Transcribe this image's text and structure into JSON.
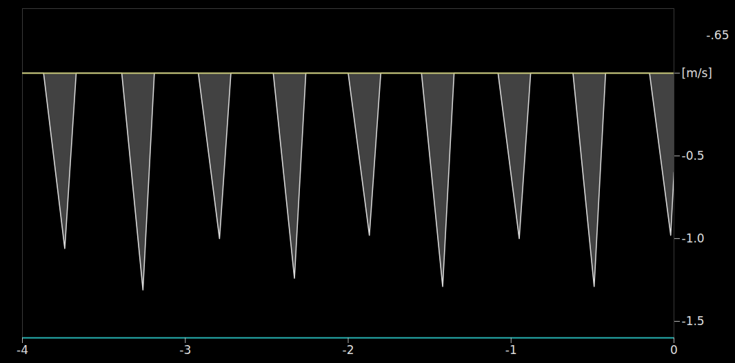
{
  "chart_data": {
    "type": "line",
    "x": [
      -4,
      -3.87,
      -3.74,
      -3.67,
      -3.39,
      -3.26,
      -3.19,
      -2.92,
      -2.79,
      -2.72,
      -2.46,
      -2.33,
      -2.26,
      -2.0,
      -1.87,
      -1.8,
      -1.55,
      -1.42,
      -1.35,
      -1.08,
      -0.95,
      -0.88,
      -0.62,
      -0.49,
      -0.42,
      -0.15,
      -0.02,
      0
    ],
    "values": [
      0,
      0,
      -1.06,
      0,
      0,
      -1.31,
      0,
      0,
      -1.0,
      0,
      0,
      -1.24,
      0,
      0,
      -0.98,
      0,
      0,
      -1.29,
      0,
      0,
      -1.0,
      0,
      0,
      -1.29,
      0,
      0,
      -0.98,
      -0.6
    ],
    "color": "#d9d9d9",
    "xlim": [
      -4,
      0
    ],
    "xticks": [
      -4,
      -3,
      -2,
      -1,
      0
    ],
    "ylim": [
      -1.6,
      0.39
    ],
    "yticks": [
      {
        "value": 0,
        "label": "[m/s]"
      },
      -0.5,
      {
        "value": -1,
        "label": "-1.0"
      },
      -1.5
    ],
    "annotation": "-.65",
    "grid": false
  }
}
